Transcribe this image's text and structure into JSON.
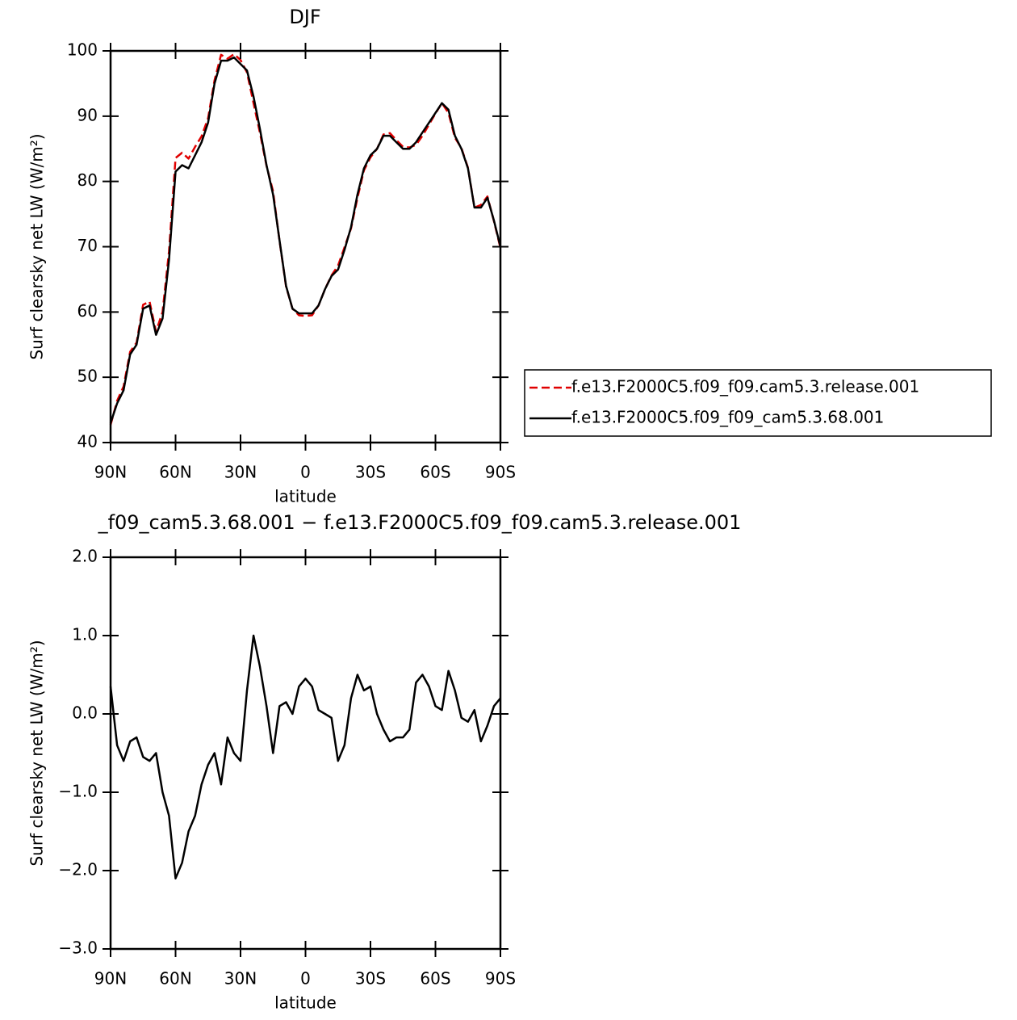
{
  "chart_data": [
    {
      "type": "line",
      "title": "DJF",
      "xlabel": "latitude",
      "ylabel": "Surf clearsky net LW (W/m²)",
      "x": [
        90,
        87,
        84,
        81,
        78,
        75,
        72,
        69,
        66,
        63,
        60,
        57,
        54,
        51,
        48,
        45,
        42,
        39,
        36,
        33,
        30,
        27,
        24,
        21,
        18,
        15,
        12,
        9,
        6,
        3,
        0,
        -3,
        -6,
        -9,
        -12,
        -15,
        -18,
        -21,
        -24,
        -27,
        -30,
        -33,
        -36,
        -39,
        -42,
        -45,
        -48,
        -51,
        -54,
        -57,
        -60,
        -63,
        -66,
        -69,
        -72,
        -75,
        -78,
        -81,
        -84,
        -87,
        -90
      ],
      "xlim": [
        90,
        -90
      ],
      "xticks": [
        {
          "value": 90,
          "label": "90N"
        },
        {
          "value": 60,
          "label": "60N"
        },
        {
          "value": 30,
          "label": "30N"
        },
        0,
        {
          "value": -30,
          "label": "30S"
        },
        {
          "value": -60,
          "label": "60S"
        },
        {
          "value": -90,
          "label": "90S"
        }
      ],
      "ylim": [
        40,
        100
      ],
      "yticks": [
        40,
        50,
        60,
        70,
        80,
        90,
        100
      ],
      "legend": "right",
      "series": [
        {
          "name": "f.e13.F2000C5.f09_f09.cam5.3.release.001",
          "color": "#e00000",
          "dash": true,
          "values": [
            42.7,
            46.4,
            48.6,
            53.9,
            55.3,
            61.1,
            61.6,
            57.0,
            60.0,
            69.3,
            83.6,
            84.4,
            83.5,
            85.3,
            86.9,
            89.7,
            95.5,
            99.4,
            98.8,
            99.5,
            98.6,
            96.7,
            92.0,
            87.4,
            82.4,
            78.5,
            70.9,
            63.9,
            60.5,
            59.5,
            59.4,
            59.5,
            61.0,
            63.5,
            65.6,
            67.1,
            69.9,
            72.8,
            77.5,
            81.7,
            83.7,
            85.0,
            87.2,
            87.4,
            86.3,
            85.3,
            85.2,
            85.6,
            87.0,
            88.7,
            90.4,
            92.0,
            90.5,
            86.7,
            85.1,
            82.1,
            76.0,
            76.4,
            77.7,
            73.9,
            69.8
          ]
        },
        {
          "name": "f.e13.F2000C5.f09_f09_cam5.3.68.001",
          "color": "#000000",
          "dash": false,
          "values": [
            43,
            46,
            48,
            53.5,
            55,
            60.5,
            61,
            56.5,
            59,
            68,
            81.5,
            82.5,
            82,
            84,
            86,
            89,
            95,
            98.5,
            98.5,
            99,
            98,
            97,
            93,
            88,
            82.5,
            78,
            71,
            64,
            60.5,
            59.8,
            59.8,
            59.8,
            61,
            63.5,
            65.5,
            66.5,
            69.5,
            73,
            78,
            82,
            84,
            85,
            87,
            87,
            86,
            85,
            85,
            86,
            87.5,
            89,
            90.5,
            92,
            91,
            87,
            85,
            82,
            76,
            76,
            77.5,
            74,
            70
          ]
        }
      ]
    },
    {
      "type": "line",
      "title": "_f09_cam5.3.68.001 − f.e13.F2000C5.f09_f09.cam5.3.release.001",
      "xlabel": "latitude",
      "ylabel": "Surf clearsky net LW (W/m²)",
      "x": [
        90,
        87,
        84,
        81,
        78,
        75,
        72,
        69,
        66,
        63,
        60,
        57,
        54,
        51,
        48,
        45,
        42,
        39,
        36,
        33,
        30,
        27,
        24,
        21,
        18,
        15,
        12,
        9,
        6,
        3,
        0,
        -3,
        -6,
        -9,
        -12,
        -15,
        -18,
        -21,
        -24,
        -27,
        -30,
        -33,
        -36,
        -39,
        -42,
        -45,
        -48,
        -51,
        -54,
        -57,
        -60,
        -63,
        -66,
        -69,
        -72,
        -75,
        -78,
        -81,
        -84,
        -87,
        -90
      ],
      "xlim": [
        90,
        -90
      ],
      "xticks": [
        {
          "value": 90,
          "label": "90N"
        },
        {
          "value": 60,
          "label": "60N"
        },
        {
          "value": 30,
          "label": "30N"
        },
        0,
        {
          "value": -30,
          "label": "30S"
        },
        {
          "value": -60,
          "label": "60S"
        },
        {
          "value": -90,
          "label": "90S"
        }
      ],
      "ylim": [
        -3,
        2
      ],
      "yticks": [
        {
          "value": -3,
          "label": "−3.0"
        },
        {
          "value": -2,
          "label": "−2.0"
        },
        {
          "value": -1,
          "label": "−1.0"
        },
        {
          "value": 0,
          "label": "0.0"
        },
        {
          "value": 1,
          "label": "1.0"
        },
        {
          "value": 2,
          "label": "2.0"
        }
      ],
      "series": [
        {
          "color": "#000000",
          "dash": false,
          "values": [
            0.35,
            -0.4,
            -0.6,
            -0.35,
            -0.3,
            -0.55,
            -0.6,
            -0.5,
            -1.0,
            -1.3,
            -2.1,
            -1.9,
            -1.5,
            -1.3,
            -0.9,
            -0.65,
            -0.5,
            -0.9,
            -0.3,
            -0.5,
            -0.6,
            0.3,
            1.0,
            0.6,
            0.1,
            -0.5,
            0.1,
            0.15,
            0.0,
            0.35,
            0.45,
            0.35,
            0.05,
            0.0,
            -0.05,
            -0.6,
            -0.4,
            0.2,
            0.5,
            0.3,
            0.35,
            0.0,
            -0.2,
            -0.35,
            -0.3,
            -0.3,
            -0.2,
            0.4,
            0.5,
            0.35,
            0.1,
            0.05,
            0.55,
            0.3,
            -0.05,
            -0.1,
            0.05,
            -0.35,
            -0.15,
            0.1,
            0.2
          ]
        }
      ]
    }
  ]
}
